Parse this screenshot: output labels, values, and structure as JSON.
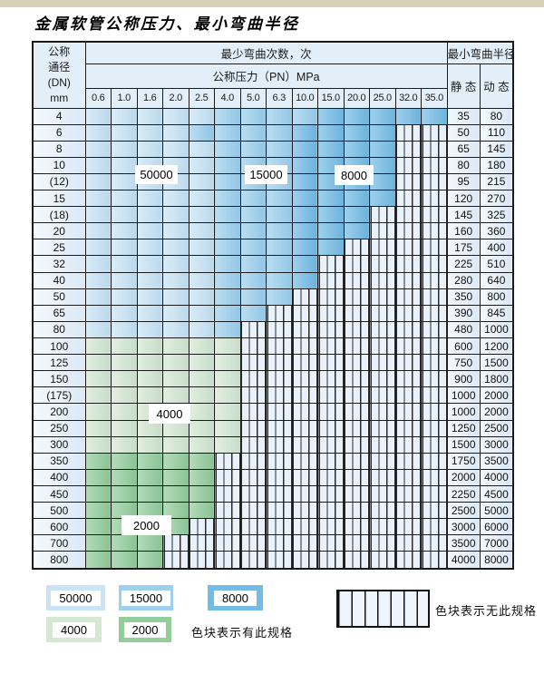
{
  "page": {
    "title": "金属软管公称压力、最小弯曲半径"
  },
  "table": {
    "header": {
      "dn_lines": [
        "公称",
        "通径",
        "(DN)",
        "mm"
      ],
      "bend_cycles_label": "最少弯曲次数，次",
      "pressure_label": "公称压力（PN）MPa",
      "radius_label": "最小弯曲半径",
      "static_label": "静 态",
      "dynamic_label": "动 态",
      "pressures": [
        "0.6",
        "1.0",
        "1.6",
        "2.0",
        "2.5",
        "4.0",
        "5.0",
        "6.3",
        "10.0",
        "15.0",
        "20.0",
        "25.0",
        "32.0",
        "35.0"
      ]
    },
    "zone_meaning": {
      "L": "50000",
      "M": "15000",
      "D": "8000",
      "G4": "4000",
      "G2": "2000",
      "X": "无此规格"
    },
    "overlays": [
      {
        "text": "50000"
      },
      {
        "text": "15000"
      },
      {
        "text": "8000"
      },
      {
        "text": "4000"
      },
      {
        "text": "2000"
      }
    ],
    "rows": [
      {
        "dn": "4",
        "cells": [
          "L",
          "L",
          "L",
          "L",
          "L",
          "M",
          "M",
          "M",
          "M",
          "D",
          "D",
          "D",
          "D",
          "D"
        ],
        "static": "35",
        "dynamic": "80"
      },
      {
        "dn": "6",
        "cells": [
          "L",
          "L",
          "L",
          "L",
          "M",
          "M",
          "M",
          "M",
          "D",
          "D",
          "D",
          "D",
          "X",
          "X"
        ],
        "static": "50",
        "dynamic": "110"
      },
      {
        "dn": "8",
        "cells": [
          "L",
          "L",
          "L",
          "L",
          "L",
          "M",
          "M",
          "M",
          "D",
          "D",
          "D",
          "D",
          "X",
          "X"
        ],
        "static": "65",
        "dynamic": "145"
      },
      {
        "dn": "10",
        "cells": [
          "L",
          "L",
          "L",
          "L",
          "L",
          "M",
          "M",
          "M",
          "D",
          "D",
          "D",
          "D",
          "X",
          "X"
        ],
        "static": "80",
        "dynamic": "180"
      },
      {
        "dn": "(12)",
        "cells": [
          "L",
          "L",
          "L",
          "L",
          "L",
          "M",
          "M",
          "M",
          "D",
          "D",
          "D",
          "D",
          "X",
          "X"
        ],
        "static": "95",
        "dynamic": "215"
      },
      {
        "dn": "15",
        "cells": [
          "L",
          "L",
          "L",
          "L",
          "L",
          "M",
          "M",
          "M",
          "D",
          "D",
          "D",
          "D",
          "X",
          "X"
        ],
        "static": "120",
        "dynamic": "270"
      },
      {
        "dn": "(18)",
        "cells": [
          "L",
          "L",
          "L",
          "L",
          "L",
          "M",
          "M",
          "M",
          "D",
          "D",
          "D",
          "X",
          "X",
          "X"
        ],
        "static": "145",
        "dynamic": "325"
      },
      {
        "dn": "20",
        "cells": [
          "L",
          "L",
          "L",
          "L",
          "L",
          "M",
          "M",
          "M",
          "D",
          "D",
          "D",
          "X",
          "X",
          "X"
        ],
        "static": "160",
        "dynamic": "360"
      },
      {
        "dn": "25",
        "cells": [
          "L",
          "L",
          "L",
          "L",
          "L",
          "M",
          "M",
          "M",
          "D",
          "D",
          "X",
          "X",
          "X",
          "X"
        ],
        "static": "175",
        "dynamic": "400"
      },
      {
        "dn": "32",
        "cells": [
          "L",
          "L",
          "L",
          "L",
          "L",
          "M",
          "M",
          "M",
          "D",
          "X",
          "X",
          "X",
          "X",
          "X"
        ],
        "static": "225",
        "dynamic": "510"
      },
      {
        "dn": "40",
        "cells": [
          "L",
          "L",
          "L",
          "L",
          "L",
          "M",
          "M",
          "M",
          "D",
          "X",
          "X",
          "X",
          "X",
          "X"
        ],
        "static": "280",
        "dynamic": "640"
      },
      {
        "dn": "50",
        "cells": [
          "L",
          "L",
          "L",
          "L",
          "L",
          "M",
          "M",
          "M",
          "X",
          "X",
          "X",
          "X",
          "X",
          "X"
        ],
        "static": "350",
        "dynamic": "800"
      },
      {
        "dn": "65",
        "cells": [
          "L",
          "L",
          "L",
          "L",
          "L",
          "M",
          "M",
          "X",
          "X",
          "X",
          "X",
          "X",
          "X",
          "X"
        ],
        "static": "390",
        "dynamic": "845"
      },
      {
        "dn": "80",
        "cells": [
          "L",
          "L",
          "L",
          "L",
          "L",
          "M",
          "X",
          "X",
          "X",
          "X",
          "X",
          "X",
          "X",
          "X"
        ],
        "static": "480",
        "dynamic": "1000"
      },
      {
        "dn": "100",
        "cells": [
          "G4",
          "G4",
          "G4",
          "G4",
          "G4",
          "G4",
          "X",
          "X",
          "X",
          "X",
          "X",
          "X",
          "X",
          "X"
        ],
        "static": "600",
        "dynamic": "1200"
      },
      {
        "dn": "125",
        "cells": [
          "G4",
          "G4",
          "G4",
          "G4",
          "G4",
          "G4",
          "X",
          "X",
          "X",
          "X",
          "X",
          "X",
          "X",
          "X"
        ],
        "static": "750",
        "dynamic": "1500"
      },
      {
        "dn": "150",
        "cells": [
          "G4",
          "G4",
          "G4",
          "G4",
          "G4",
          "G4",
          "X",
          "X",
          "X",
          "X",
          "X",
          "X",
          "X",
          "X"
        ],
        "static": "900",
        "dynamic": "1800"
      },
      {
        "dn": "(175)",
        "cells": [
          "G4",
          "G4",
          "G4",
          "G4",
          "G4",
          "G4",
          "X",
          "X",
          "X",
          "X",
          "X",
          "X",
          "X",
          "X"
        ],
        "static": "1000",
        "dynamic": "2000"
      },
      {
        "dn": "200",
        "cells": [
          "G4",
          "G4",
          "G4",
          "G4",
          "G4",
          "G4",
          "X",
          "X",
          "X",
          "X",
          "X",
          "X",
          "X",
          "X"
        ],
        "static": "1000",
        "dynamic": "2000"
      },
      {
        "dn": "250",
        "cells": [
          "G4",
          "G4",
          "G4",
          "G4",
          "G4",
          "G4",
          "X",
          "X",
          "X",
          "X",
          "X",
          "X",
          "X",
          "X"
        ],
        "static": "1250",
        "dynamic": "2500"
      },
      {
        "dn": "300",
        "cells": [
          "G4",
          "G4",
          "G4",
          "G4",
          "G4",
          "G4",
          "X",
          "X",
          "X",
          "X",
          "X",
          "X",
          "X",
          "X"
        ],
        "static": "1500",
        "dynamic": "3000"
      },
      {
        "dn": "350",
        "cells": [
          "G2",
          "G2",
          "G2",
          "G2",
          "G2",
          "X",
          "X",
          "X",
          "X",
          "X",
          "X",
          "X",
          "X",
          "X"
        ],
        "static": "1750",
        "dynamic": "3500"
      },
      {
        "dn": "400",
        "cells": [
          "G2",
          "G2",
          "G2",
          "G2",
          "G2",
          "X",
          "X",
          "X",
          "X",
          "X",
          "X",
          "X",
          "X",
          "X"
        ],
        "static": "2000",
        "dynamic": "4000"
      },
      {
        "dn": "450",
        "cells": [
          "G2",
          "G2",
          "G2",
          "G2",
          "G2",
          "X",
          "X",
          "X",
          "X",
          "X",
          "X",
          "X",
          "X",
          "X"
        ],
        "static": "2250",
        "dynamic": "4500"
      },
      {
        "dn": "500",
        "cells": [
          "G2",
          "G2",
          "G2",
          "G2",
          "G2",
          "X",
          "X",
          "X",
          "X",
          "X",
          "X",
          "X",
          "X",
          "X"
        ],
        "static": "2500",
        "dynamic": "5000"
      },
      {
        "dn": "600",
        "cells": [
          "G2",
          "G2",
          "G2",
          "G2",
          "X",
          "X",
          "X",
          "X",
          "X",
          "X",
          "X",
          "X",
          "X",
          "X"
        ],
        "static": "3000",
        "dynamic": "6000"
      },
      {
        "dn": "700",
        "cells": [
          "G2",
          "G2",
          "G2",
          "X",
          "X",
          "X",
          "X",
          "X",
          "X",
          "X",
          "X",
          "X",
          "X",
          "X"
        ],
        "static": "3500",
        "dynamic": "7000"
      },
      {
        "dn": "800",
        "cells": [
          "G2",
          "G2",
          "G2",
          "X",
          "X",
          "X",
          "X",
          "X",
          "X",
          "X",
          "X",
          "X",
          "X",
          "X"
        ],
        "static": "4000",
        "dynamic": "8000"
      }
    ]
  },
  "legend": {
    "items": [
      {
        "value": "50000",
        "color": "#c8e4f6"
      },
      {
        "value": "15000",
        "color": "#9cd0ee"
      },
      {
        "value": "8000",
        "color": "#74bce6"
      },
      {
        "value": "4000",
        "color": "#d4e8d2"
      },
      {
        "value": "2000",
        "color": "#92cd9a"
      }
    ],
    "has_spec_text": "色块表示有此规格",
    "no_spec_text": "色块表示无此规格"
  },
  "colors": {
    "border": "#1b1b1b",
    "hatch_bg": "#e9f1fa",
    "header_bg": "#e2eff9",
    "zone_50000": "#c8e4f6",
    "zone_15000": "#9cd0ee",
    "zone_8000": "#74bce6",
    "zone_4000": "#d4e8d2",
    "zone_2000": "#92cd9a",
    "top_strip": "#d7cfb6"
  }
}
